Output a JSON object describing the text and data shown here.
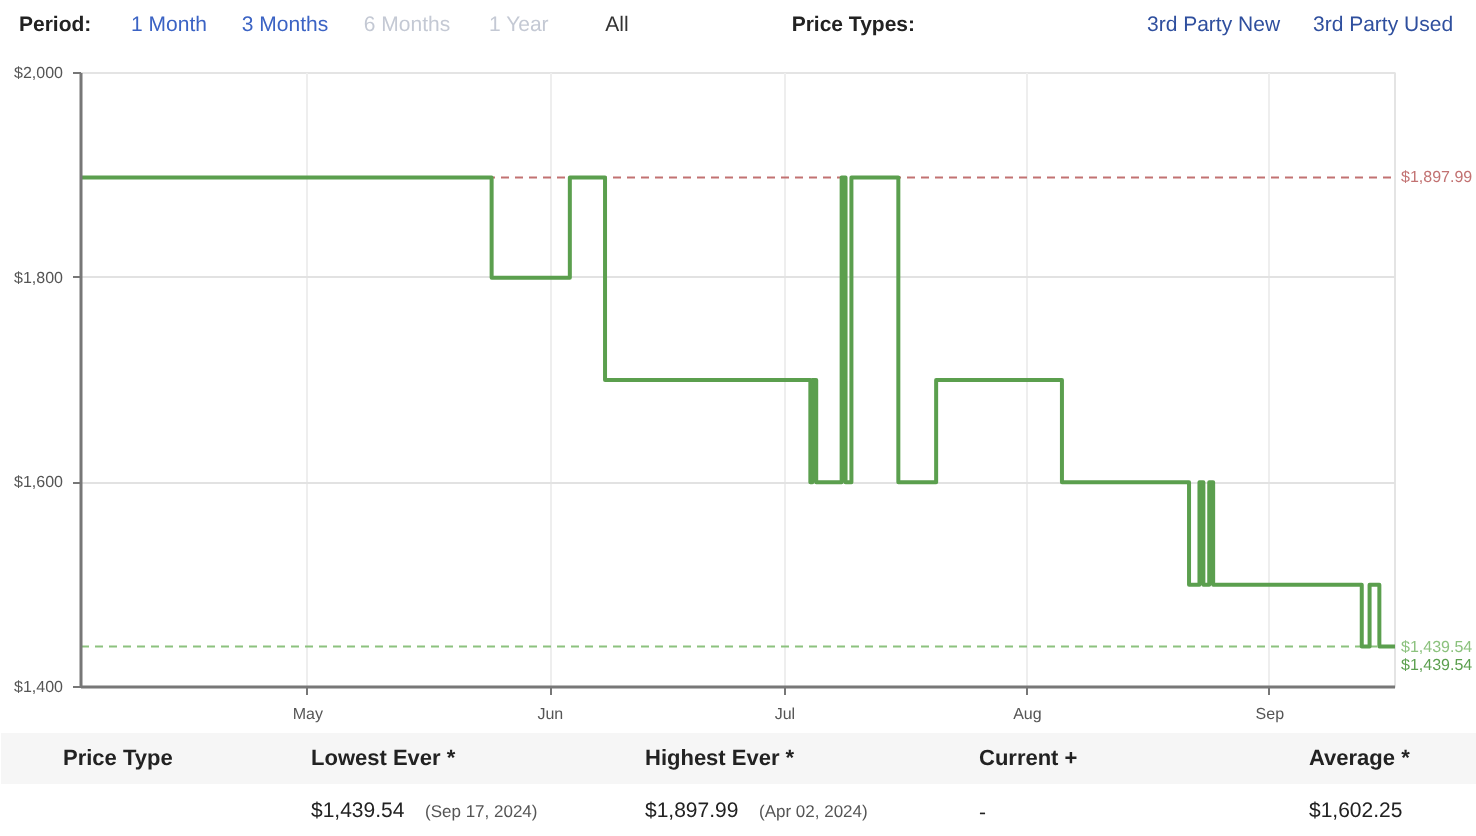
{
  "chart_data": {
    "type": "step",
    "annotations": [
      "Period:",
      "1 Month",
      "3 Months",
      "6 Months",
      "1 Year",
      "All",
      "Price Types:",
      "3rd Party New",
      "3rd Party Used",
      "Price Type",
      "Lowest Ever *",
      "Highest Ever *",
      "Current +",
      "Average *",
      "$1,439.54",
      "(Sep 17, 2024)",
      "$1,897.99",
      "(Apr 02, 2024)",
      "-",
      "$1,602.25",
      {
        "text": "$1,439.54",
        "x": "2024-09-17",
        "y": 1439.54
      }
    ],
    "x": [
      "2024-04-02",
      "2024-05-24T12:00",
      "2024-06-03T12:00",
      "2024-06-08",
      "2024-07-04T06:00",
      "2024-07-04T12:00",
      "2024-07-05",
      "2024-07-08T06:00",
      "2024-07-08T18:00",
      "2024-07-09T12:00",
      "2024-07-15T12:00",
      "2024-07-20T08:00",
      "2024-08-05T10:00",
      "2024-08-21T16:00",
      "2024-08-23",
      "2024-08-23T12:00",
      "2024-08-24T06:00",
      "2024-08-24T18:00",
      "2024-09-12T18:00",
      "2024-09-13T18:00",
      "2024-09-15",
      "2024-09-17"
    ],
    "series": [
      {
        "color": "#5b9f4e",
        "values": [
          1897.99,
          1800,
          1897.99,
          1700,
          1600,
          1700,
          1600,
          1897.99,
          1600,
          1897.99,
          1600,
          1700,
          1600,
          1500,
          1600,
          1500,
          1600,
          1500,
          1439.54,
          1500,
          1439.54,
          1439.54
        ]
      }
    ],
    "xlim": [
      "2024-04-02",
      "2024-09-17"
    ],
    "ylim": [
      1400,
      2000
    ],
    "xticks": [
      {
        "value": "2024-05-01",
        "label": "May"
      },
      {
        "value": "2024-06-01",
        "label": "Jun"
      },
      {
        "value": "2024-07-01",
        "label": "Jul"
      },
      {
        "value": "2024-08-01",
        "label": "Aug"
      },
      {
        "value": "2024-09-01",
        "label": "Sep"
      }
    ],
    "yticks": [
      {
        "value": 1400,
        "label": "$1,400"
      },
      {
        "value": 1600,
        "label": "$1,600"
      },
      {
        "value": 1800,
        "label": "$1,800"
      },
      {
        "value": 2000,
        "label": "$2,000"
      }
    ],
    "ref_lines": [
      {
        "axis": "y",
        "value": 1897.99,
        "label": "$1,897.99",
        "color": "#c27272",
        "line_style": "dashed"
      },
      {
        "axis": "y",
        "value": 1439.54,
        "label": "$1,439.54",
        "color": "#8cc27e",
        "line_style": "dashed"
      }
    ],
    "grid": true
  }
}
